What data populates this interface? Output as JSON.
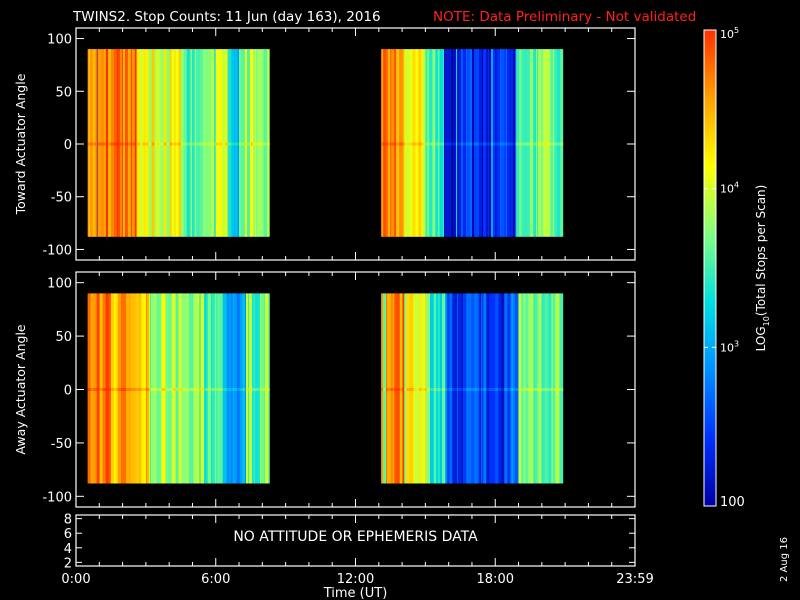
{
  "header": {
    "title": "TWINS2. Stop Counts: 11 Jun (day 163), 2016",
    "note": "NOTE: Data Preliminary - Not validated",
    "note_color": "#ff2020"
  },
  "side_date": "2 Aug 16",
  "colorbar": {
    "label": "LOG10(Total Stops per Scan)",
    "ticks": [
      "100",
      "10^3",
      "10^4",
      "10^5"
    ],
    "tick_values": [
      100,
      1000,
      10000,
      100000
    ],
    "range": [
      100,
      100000
    ],
    "scale": "log",
    "colormap": [
      "#0000a0",
      "#0030ff",
      "#0090ff",
      "#00e0e0",
      "#80ff80",
      "#ffff00",
      "#ffa000",
      "#ff3000"
    ]
  },
  "chart_data": [
    {
      "type": "heatmap",
      "name": "toward-panel",
      "title": "",
      "xlabel": "",
      "ylabel": "Toward Actuator Angle",
      "xlim": [
        0,
        24
      ],
      "ylim": [
        -110,
        110
      ],
      "yticks": [
        100,
        50,
        0,
        -50,
        -100
      ],
      "data_y_range": [
        -88,
        90
      ],
      "x_units": "hours UT",
      "data_segments": [
        {
          "x_start": 0.5,
          "x_end": 8.3
        },
        {
          "x_start": 13.1,
          "x_end": 20.9
        }
      ],
      "color_bands": [
        {
          "x": [
            0.5,
            0.9
          ],
          "level": 0.85
        },
        {
          "x": [
            0.9,
            2.6
          ],
          "level": 0.92
        },
        {
          "x": [
            2.6,
            4.5
          ],
          "level": 0.7
        },
        {
          "x": [
            4.5,
            6.0
          ],
          "level": 0.55
        },
        {
          "x": [
            6.0,
            6.5
          ],
          "level": 0.72
        },
        {
          "x": [
            6.5,
            7.0
          ],
          "level": 0.38
        },
        {
          "x": [
            7.0,
            8.3
          ],
          "level": 0.62
        },
        {
          "x": [
            13.1,
            14.1
          ],
          "level": 0.9
        },
        {
          "x": [
            14.1,
            15.0
          ],
          "level": 0.68
        },
        {
          "x": [
            15.0,
            15.8
          ],
          "level": 0.5
        },
        {
          "x": [
            15.8,
            18.9
          ],
          "level": 0.12
        },
        {
          "x": [
            18.9,
            20.9
          ],
          "level": 0.55
        }
      ]
    },
    {
      "type": "heatmap",
      "name": "away-panel",
      "title": "",
      "xlabel": "",
      "ylabel": "Away Actuator Angle",
      "xlim": [
        0,
        24
      ],
      "ylim": [
        -110,
        110
      ],
      "yticks": [
        100,
        50,
        0,
        -50,
        -100
      ],
      "data_y_range": [
        -88,
        90
      ],
      "x_units": "hours UT",
      "data_segments": [
        {
          "x_start": 0.5,
          "x_end": 8.3
        },
        {
          "x_start": 13.1,
          "x_end": 20.9
        }
      ],
      "color_bands": [
        {
          "x": [
            0.5,
            1.5
          ],
          "level": 0.9
        },
        {
          "x": [
            1.5,
            3.2
          ],
          "level": 0.82
        },
        {
          "x": [
            3.2,
            5.5
          ],
          "level": 0.62
        },
        {
          "x": [
            5.5,
            6.3
          ],
          "level": 0.5
        },
        {
          "x": [
            6.3,
            7.3
          ],
          "level": 0.35
        },
        {
          "x": [
            7.3,
            8.3
          ],
          "level": 0.55
        },
        {
          "x": [
            13.1,
            14.1
          ],
          "level": 0.9
        },
        {
          "x": [
            14.1,
            15.2
          ],
          "level": 0.68
        },
        {
          "x": [
            15.2,
            15.9
          ],
          "level": 0.45
        },
        {
          "x": [
            15.9,
            19.0
          ],
          "level": 0.15
        },
        {
          "x": [
            19.0,
            20.9
          ],
          "level": 0.55
        }
      ]
    },
    {
      "type": "line",
      "name": "attitude-panel",
      "title": "",
      "xlabel": "Time (UT)",
      "ylabel": "",
      "xlim": [
        0,
        24
      ],
      "ylim": [
        1.5,
        8.5
      ],
      "yticks": [
        8,
        6,
        4,
        2
      ],
      "xticks": [
        "0:00",
        "6:00",
        "12:00",
        "18:00",
        "23:59"
      ],
      "xtick_values": [
        0,
        6,
        12,
        18,
        24
      ],
      "message": "NO ATTITUDE OR EPHEMERIS DATA",
      "series": []
    }
  ]
}
